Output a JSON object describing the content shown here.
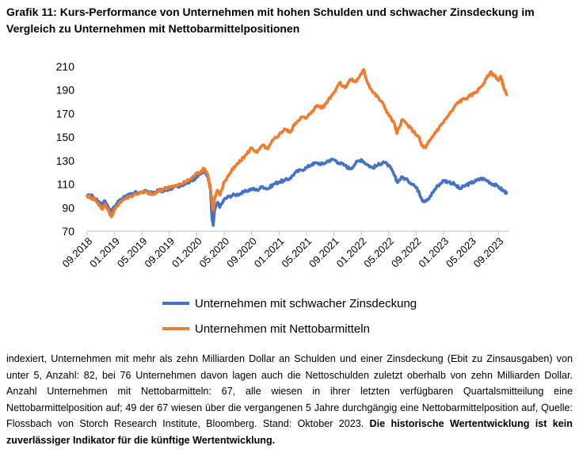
{
  "title": "Grafik 11: Kurs-Performance von Unternehmen mit hohen Schulden und schwacher Zinsdeckung im Vergleich zu Unternehmen mit Nettobarmittelpositionen",
  "footnote": {
    "text": "indexiert, Unternehmen mit mehr als zehn Milliarden Dollar an Schulden und einer Zinsdeckung (Ebit zu Zinsausgaben) von unter 5, Anzahl: 82, bei 76 Unternehmen davon lagen auch die Nettoschulden zuletzt oberhalb von zehn Milliarden Dollar. Anzahl Unternehmen mit Nettobarmitteln: 67, alle wiesen in ihrer letzten verfügbaren Quartalsmitteilung eine Nettobarmittelposition auf; 49 der 67 wiesen über die vergangenen 5 Jahre durchgängig eine Nettobarmittelposition auf, Quelle: Flossbach von Storch Research Institute, Bloomberg. Stand: Oktober 2023.",
    "bold": "Die historische Wertentwicklung ist kein zuverlässiger Indikator für die künftige Wertentwicklung."
  },
  "chart_data": {
    "type": "line",
    "ylim": [
      70,
      210
    ],
    "yticks": [
      "70",
      "90",
      "110",
      "130",
      "150",
      "170",
      "190",
      "210"
    ],
    "xticks": [
      "09.2018",
      "01.2019",
      "05.2019",
      "09.2019",
      "01.2020",
      "05.2020",
      "09.2020",
      "01.2021",
      "05.2021",
      "09.2021",
      "01.2022",
      "05.2022",
      "09.2022",
      "01.2023",
      "05.2023",
      "09.2023"
    ],
    "x_start": 0,
    "x_end": 15.4,
    "series": [
      {
        "name": "Unternehmen mit schwacher Zinsdeckung",
        "color": "#4472C4",
        "points": [
          [
            0,
            100
          ],
          [
            0.2,
            100
          ],
          [
            0.3,
            97
          ],
          [
            0.45,
            95
          ],
          [
            0.55,
            92
          ],
          [
            0.65,
            96
          ],
          [
            0.8,
            89
          ],
          [
            0.9,
            87
          ],
          [
            1.0,
            91
          ],
          [
            1.2,
            97
          ],
          [
            1.4,
            100
          ],
          [
            1.6,
            101
          ],
          [
            1.8,
            103
          ],
          [
            2.0,
            103
          ],
          [
            2.2,
            104
          ],
          [
            2.4,
            102
          ],
          [
            2.6,
            105
          ],
          [
            2.8,
            104
          ],
          [
            3.0,
            106
          ],
          [
            3.2,
            108
          ],
          [
            3.4,
            109
          ],
          [
            3.6,
            111
          ],
          [
            3.8,
            113
          ],
          [
            4.0,
            116
          ],
          [
            4.2,
            120
          ],
          [
            4.3,
            121
          ],
          [
            4.4,
            117
          ],
          [
            4.5,
            105
          ],
          [
            4.55,
            82
          ],
          [
            4.6,
            75
          ],
          [
            4.65,
            88
          ],
          [
            4.75,
            94
          ],
          [
            4.85,
            91
          ],
          [
            5.0,
            97
          ],
          [
            5.2,
            100
          ],
          [
            5.4,
            101
          ],
          [
            5.6,
            102
          ],
          [
            5.8,
            104
          ],
          [
            6.0,
            106
          ],
          [
            6.2,
            105
          ],
          [
            6.4,
            108
          ],
          [
            6.6,
            106
          ],
          [
            6.8,
            110
          ],
          [
            7.0,
            112
          ],
          [
            7.2,
            113
          ],
          [
            7.4,
            115
          ],
          [
            7.6,
            120
          ],
          [
            7.8,
            122
          ],
          [
            8.0,
            124
          ],
          [
            8.2,
            127
          ],
          [
            8.4,
            128
          ],
          [
            8.6,
            127
          ],
          [
            8.8,
            130
          ],
          [
            9.0,
            131
          ],
          [
            9.2,
            128
          ],
          [
            9.4,
            126
          ],
          [
            9.6,
            123
          ],
          [
            9.8,
            128
          ],
          [
            10.0,
            131
          ],
          [
            10.2,
            127
          ],
          [
            10.4,
            124
          ],
          [
            10.6,
            126
          ],
          [
            10.8,
            129
          ],
          [
            11.0,
            126
          ],
          [
            11.2,
            118
          ],
          [
            11.3,
            112
          ],
          [
            11.5,
            116
          ],
          [
            11.7,
            113
          ],
          [
            11.9,
            110
          ],
          [
            12.1,
            104
          ],
          [
            12.2,
            98
          ],
          [
            12.3,
            95
          ],
          [
            12.45,
            97
          ],
          [
            12.6,
            103
          ],
          [
            12.8,
            109
          ],
          [
            13.0,
            113
          ],
          [
            13.2,
            112
          ],
          [
            13.4,
            110
          ],
          [
            13.6,
            106
          ],
          [
            13.8,
            109
          ],
          [
            14.0,
            111
          ],
          [
            14.2,
            113
          ],
          [
            14.4,
            115
          ],
          [
            14.6,
            113
          ],
          [
            14.8,
            110
          ],
          [
            15.0,
            108
          ],
          [
            15.2,
            104
          ],
          [
            15.3,
            103
          ]
        ]
      },
      {
        "name": "Unternehmen mit Nettobarmitteln",
        "color": "#ED7D31",
        "points": [
          [
            0,
            100
          ],
          [
            0.2,
            98
          ],
          [
            0.3,
            97
          ],
          [
            0.45,
            92
          ],
          [
            0.55,
            89
          ],
          [
            0.65,
            93
          ],
          [
            0.8,
            86
          ],
          [
            0.9,
            83
          ],
          [
            1.0,
            88
          ],
          [
            1.2,
            95
          ],
          [
            1.4,
            98
          ],
          [
            1.6,
            100
          ],
          [
            1.8,
            102
          ],
          [
            2.0,
            103
          ],
          [
            2.2,
            103
          ],
          [
            2.4,
            101
          ],
          [
            2.6,
            104
          ],
          [
            2.8,
            106
          ],
          [
            3.0,
            108
          ],
          [
            3.2,
            108
          ],
          [
            3.4,
            110
          ],
          [
            3.6,
            112
          ],
          [
            3.8,
            115
          ],
          [
            4.0,
            119
          ],
          [
            4.2,
            122
          ],
          [
            4.3,
            123
          ],
          [
            4.4,
            118
          ],
          [
            4.5,
            107
          ],
          [
            4.55,
            96
          ],
          [
            4.6,
            88
          ],
          [
            4.65,
            98
          ],
          [
            4.75,
            105
          ],
          [
            4.85,
            101
          ],
          [
            5.0,
            112
          ],
          [
            5.2,
            119
          ],
          [
            5.4,
            125
          ],
          [
            5.6,
            130
          ],
          [
            5.8,
            135
          ],
          [
            6.0,
            141
          ],
          [
            6.2,
            137
          ],
          [
            6.4,
            143
          ],
          [
            6.6,
            140
          ],
          [
            6.8,
            148
          ],
          [
            7.0,
            152
          ],
          [
            7.2,
            157
          ],
          [
            7.4,
            154
          ],
          [
            7.6,
            162
          ],
          [
            7.8,
            167
          ],
          [
            8.0,
            166
          ],
          [
            8.2,
            172
          ],
          [
            8.4,
            177
          ],
          [
            8.6,
            175
          ],
          [
            8.8,
            182
          ],
          [
            9.0,
            188
          ],
          [
            9.2,
            196
          ],
          [
            9.4,
            192
          ],
          [
            9.6,
            199
          ],
          [
            9.8,
            197
          ],
          [
            10.0,
            204
          ],
          [
            10.1,
            207
          ],
          [
            10.2,
            198
          ],
          [
            10.4,
            189
          ],
          [
            10.6,
            184
          ],
          [
            10.8,
            178
          ],
          [
            11.0,
            169
          ],
          [
            11.2,
            162
          ],
          [
            11.3,
            153
          ],
          [
            11.5,
            165
          ],
          [
            11.7,
            160
          ],
          [
            11.9,
            155
          ],
          [
            12.1,
            150
          ],
          [
            12.2,
            143
          ],
          [
            12.35,
            141
          ],
          [
            12.5,
            147
          ],
          [
            12.7,
            154
          ],
          [
            12.9,
            160
          ],
          [
            13.1,
            166
          ],
          [
            13.3,
            172
          ],
          [
            13.5,
            179
          ],
          [
            13.7,
            182
          ],
          [
            13.9,
            184
          ],
          [
            14.1,
            187
          ],
          [
            14.3,
            191
          ],
          [
            14.5,
            197
          ],
          [
            14.7,
            205
          ],
          [
            14.9,
            202
          ],
          [
            15.0,
            198
          ],
          [
            15.1,
            201
          ],
          [
            15.2,
            192
          ],
          [
            15.3,
            186
          ]
        ]
      }
    ]
  }
}
